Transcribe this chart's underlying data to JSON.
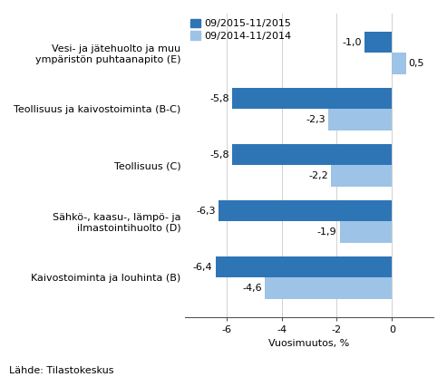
{
  "categories": [
    "Kaivostoiminta ja louhinta (B)",
    "Sähkö-, kaasu-, lämpö- ja\nilmastointihuolto (D)",
    "Teollisuus (C)",
    "Teollisuus ja kaivostoiminta (B-C)",
    "Vesi- ja jätehuolto ja muu\nympäristön puhtaanapito (E)"
  ],
  "series1_values": [
    -6.4,
    -6.3,
    -5.8,
    -5.8,
    -1.0
  ],
  "series2_values": [
    -4.6,
    -1.9,
    -2.2,
    -2.3,
    0.5
  ],
  "series1_label": "09/2015-11/2015",
  "series2_label": "09/2014-11/2014",
  "series1_color": "#2e75b6",
  "series2_color": "#9dc3e6",
  "xlabel": "Vuosimuutos, %",
  "xlim": [
    -7.5,
    1.5
  ],
  "xticks": [
    -6,
    -4,
    -2,
    0
  ],
  "bar_labels_s1": [
    "-6,4",
    "-6,3",
    "-5,8",
    "-5,8",
    "-1,0"
  ],
  "bar_labels_s2": [
    "-4,6",
    "-1,9",
    "-2,2",
    "-2,3",
    "0,5"
  ],
  "source_text": "Lähde: Tilastokeskus",
  "background_color": "#ffffff",
  "bar_height": 0.38,
  "label_fontsize": 8.0,
  "tick_fontsize": 8.0,
  "legend_fontsize": 8.0,
  "source_fontsize": 8.0,
  "figsize": [
    4.93,
    4.16
  ],
  "dpi": 100
}
